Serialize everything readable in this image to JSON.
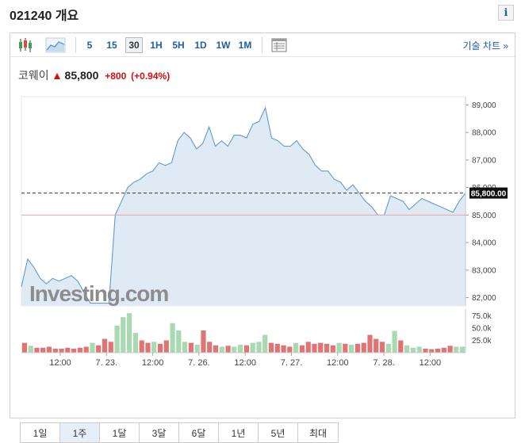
{
  "header": {
    "title": "021240 개요",
    "info_label": "i"
  },
  "toolbar": {
    "intervals": [
      "5",
      "15",
      "30",
      "1H",
      "5H",
      "1D",
      "1W",
      "1M"
    ],
    "active_interval": "30",
    "tech_link": "기술 차트 »"
  },
  "quote": {
    "name": "코웨이",
    "price": "85,800",
    "change": "+800",
    "change_pct": "(+0.94%)"
  },
  "watermark": "Investing.com",
  "ranges": {
    "items": [
      "1일",
      "1주",
      "1달",
      "3달",
      "6달",
      "1년",
      "5년",
      "최대"
    ],
    "active": "1주"
  },
  "colors": {
    "line": "#5f9bd0",
    "area": "#dfeaf5",
    "up": "#d10f0f",
    "vol_up": "#a8d9b1",
    "vol_down": "#e07474",
    "last_price_bg": "#111111"
  },
  "chart_data": {
    "type": "area",
    "price_axis": {
      "ylim": [
        81700,
        89300
      ],
      "ticks": [
        "89,000",
        "88,000",
        "87,000",
        "86,000",
        "85,000",
        "84,000",
        "83,000",
        "82,000"
      ]
    },
    "x_labels": [
      "12:00",
      "7. 23.",
      "12:00",
      "7. 26.",
      "12:00",
      "7. 27.",
      "12:00",
      "7. 28.",
      "12:00"
    ],
    "last_price": 85800,
    "last_price_label": "85,800.00",
    "reference_line": 85000,
    "prices": [
      82400,
      83400,
      83100,
      82700,
      82500,
      82700,
      82600,
      82700,
      82800,
      82600,
      82200,
      81800,
      81800,
      81800,
      81800,
      85000,
      85500,
      86000,
      86200,
      86300,
      86500,
      86600,
      86900,
      86800,
      86900,
      87700,
      88000,
      87800,
      87400,
      87600,
      88200,
      87500,
      87700,
      87500,
      87900,
      87900,
      87800,
      88300,
      88400,
      88900,
      87800,
      87700,
      87500,
      87500,
      87700,
      87400,
      87200,
      86800,
      86600,
      86600,
      86300,
      86200,
      85900,
      86100,
      85800,
      85500,
      85300,
      85000,
      85000,
      85700,
      85600,
      85500,
      85200,
      85400,
      85600,
      85500,
      85400,
      85300,
      85200,
      85100,
      85500,
      85800
    ],
    "volume_axis": {
      "ylim": [
        0,
        82000
      ],
      "ticks": [
        "75.0k",
        "50.0k",
        "25.0k"
      ]
    },
    "volumes": [
      20000,
      14000,
      10000,
      10000,
      12000,
      8000,
      8000,
      10000,
      8000,
      10000,
      12000,
      20000,
      15000,
      28000,
      22000,
      55000,
      72000,
      80000,
      40000,
      25000,
      20000,
      22000,
      18000,
      25000,
      60000,
      45000,
      22000,
      20000,
      16000,
      45000,
      22000,
      15000,
      12000,
      14000,
      12000,
      16000,
      15000,
      20000,
      22000,
      36000,
      20000,
      18000,
      15000,
      12000,
      20000,
      15000,
      22000,
      18000,
      20000,
      18000,
      15000,
      20000,
      18000,
      16000,
      18000,
      20000,
      36000,
      28000,
      22000,
      18000,
      44000,
      25000,
      15000,
      10000,
      12000,
      8000,
      7000,
      8000,
      10000,
      14000,
      12000,
      12000
    ],
    "volume_up": [
      false,
      true,
      false,
      false,
      false,
      false,
      false,
      false,
      false,
      false,
      false,
      true,
      false,
      false,
      false,
      true,
      true,
      true,
      true,
      false,
      false,
      true,
      false,
      false,
      true,
      true,
      true,
      false,
      true,
      false,
      false,
      false,
      true,
      false,
      true,
      true,
      false,
      true,
      true,
      true,
      false,
      false,
      false,
      false,
      true,
      false,
      false,
      false,
      false,
      false,
      false,
      true,
      false,
      true,
      false,
      false,
      false,
      false,
      false,
      true,
      true,
      false,
      true,
      true,
      true,
      false,
      false,
      false,
      false,
      false,
      true,
      true
    ]
  }
}
